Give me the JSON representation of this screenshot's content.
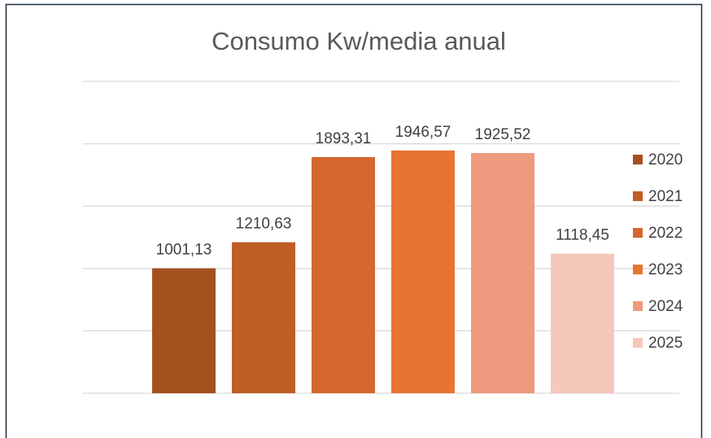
{
  "chart_data": {
    "type": "bar",
    "title": "Consumo Kw/media anual",
    "series": [
      {
        "name": "2020",
        "color": "#a5501f",
        "values": [
          1001.13
        ],
        "value_labels": [
          "1001,13"
        ]
      },
      {
        "name": "2021",
        "color": "#c05e27",
        "values": [
          1210.63
        ],
        "value_labels": [
          "1210,63"
        ]
      },
      {
        "name": "2022",
        "color": "#d4682e",
        "values": [
          1893.31
        ],
        "value_labels": [
          "1893,31"
        ]
      },
      {
        "name": "2023",
        "color": "#e87434",
        "values": [
          1946.57
        ],
        "value_labels": [
          "1946,57"
        ]
      },
      {
        "name": "2024",
        "color": "#ee9a7e",
        "values": [
          1925.52
        ],
        "value_labels": [
          "1925,52"
        ]
      },
      {
        "name": "2025",
        "color": "#f5c8bc",
        "values": [
          1118.45
        ],
        "value_labels": [
          "1118,45"
        ]
      }
    ],
    "ylim": [
      0,
      2500
    ],
    "yticks": [
      0,
      500,
      1000,
      1500,
      2000,
      2500
    ],
    "grid": true,
    "legend": "right"
  }
}
